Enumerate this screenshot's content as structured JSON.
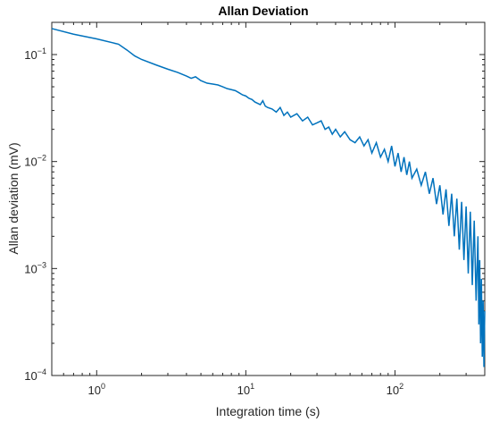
{
  "chart_data": {
    "type": "line",
    "title": "Allan Deviation",
    "xlabel": "Integration time (s)",
    "ylabel": "Allan deviation (mV)",
    "xscale": "log",
    "yscale": "log",
    "xlim": [
      0.5,
      400
    ],
    "ylim": [
      0.0001,
      0.2
    ],
    "x_ticks": [
      {
        "value": 1,
        "base": "10",
        "exp": "0"
      },
      {
        "value": 10,
        "base": "10",
        "exp": "1"
      },
      {
        "value": 100,
        "base": "10",
        "exp": "2"
      }
    ],
    "y_ticks": [
      {
        "value": 0.0001,
        "base": "10",
        "exp": "−4"
      },
      {
        "value": 0.001,
        "base": "10",
        "exp": "−3"
      },
      {
        "value": 0.01,
        "base": "10",
        "exp": "−2"
      },
      {
        "value": 0.1,
        "base": "10",
        "exp": "−1"
      }
    ],
    "grid": false,
    "legend": "none",
    "line_color": "#0072BD",
    "series": [
      {
        "x": [
          0.5,
          0.7,
          1.0,
          1.4,
          1.6,
          1.8,
          2.0,
          2.5,
          3.0,
          3.5,
          4.0,
          4.3,
          4.6,
          5.0,
          5.5,
          6.0,
          6.5,
          7.0,
          7.5,
          8.0,
          8.5,
          9.0,
          9.5,
          10.0,
          10.5,
          11.0,
          11.5,
          12.0,
          12.5,
          13.0,
          13.5,
          14.0,
          15.0,
          16.0,
          17.0,
          18.0,
          19.0,
          20.0,
          22.0,
          24.0,
          26.0,
          28.0,
          30.0,
          32.0,
          34.0,
          36.0,
          38.0,
          40.0,
          43.0,
          46.0,
          50.0,
          54.0,
          58.0,
          62.0,
          66.0,
          70.0,
          75.0,
          80.0,
          85.0,
          90.0,
          95.0,
          100.0,
          105.0,
          110.0,
          115.0,
          120.0,
          125.0,
          130.0,
          140.0,
          150.0,
          160.0,
          170.0,
          180.0,
          190.0,
          200.0,
          210.0,
          220.0,
          230.0,
          240.0,
          250.0,
          260.0,
          270.0,
          280.0,
          290.0,
          300.0,
          310.0,
          320.0,
          330.0,
          340.0,
          350.0,
          360.0,
          365.0,
          370.0,
          375.0,
          380.0,
          385.0,
          390.0,
          395.0,
          400.0
        ],
        "y": [
          0.175,
          0.155,
          0.14,
          0.125,
          0.11,
          0.097,
          0.09,
          0.08,
          0.073,
          0.068,
          0.063,
          0.06,
          0.062,
          0.057,
          0.054,
          0.053,
          0.052,
          0.05,
          0.048,
          0.047,
          0.046,
          0.044,
          0.042,
          0.041,
          0.039,
          0.038,
          0.036,
          0.035,
          0.034,
          0.037,
          0.033,
          0.032,
          0.031,
          0.029,
          0.032,
          0.027,
          0.029,
          0.026,
          0.028,
          0.024,
          0.026,
          0.022,
          0.023,
          0.024,
          0.02,
          0.021,
          0.018,
          0.02,
          0.017,
          0.019,
          0.016,
          0.015,
          0.017,
          0.014,
          0.016,
          0.012,
          0.015,
          0.011,
          0.013,
          0.01,
          0.014,
          0.009,
          0.012,
          0.008,
          0.011,
          0.0075,
          0.01,
          0.007,
          0.0085,
          0.006,
          0.008,
          0.005,
          0.007,
          0.004,
          0.006,
          0.0032,
          0.0055,
          0.0025,
          0.005,
          0.002,
          0.0045,
          0.0015,
          0.0042,
          0.0012,
          0.0038,
          0.0009,
          0.0034,
          0.0007,
          0.0028,
          0.0005,
          0.002,
          0.0003,
          0.0012,
          0.0002,
          0.0008,
          0.00015,
          0.0005,
          0.00012,
          0.0004
        ]
      }
    ]
  }
}
